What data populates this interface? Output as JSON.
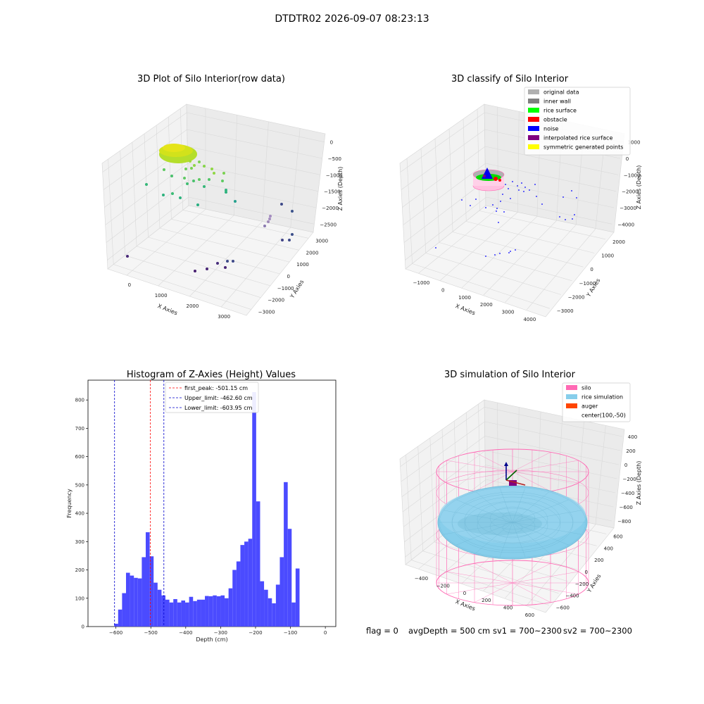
{
  "figure_title": "DTDTR02 2026-09-07 08:23:13",
  "status_line": {
    "flag": "flag = 0",
    "avg_depth": "avgDepth = 500 cm",
    "sv1": "sv1 = 700~2300",
    "sv2": "sv2 = 700~2300"
  },
  "colors": {
    "hist_bar": "#4b4bff",
    "first_peak": "#ff0000",
    "limits": "#0000cc",
    "silo": "#ff69b4",
    "rice": "#87ceeb",
    "auger": "#ff4500"
  },
  "chart_data": [
    {
      "type": "scatter",
      "title": "3D Plot of Silo Interior(row data)",
      "projection": "3d",
      "xlabel": "X Axies",
      "ylabel": "Y Axies",
      "zlabel": "Z Axies (Depth)",
      "x_ticks": [
        "0",
        "1000",
        "2000",
        "3000"
      ],
      "y_ticks": [
        "3000",
        "2000",
        "1000",
        "0",
        "−1000",
        "−2000",
        "−3000"
      ],
      "z_ticks": [
        "0",
        "−500",
        "−1000",
        "−1500",
        "−2000",
        "−2500"
      ],
      "colormap": "viridis (by depth)"
    },
    {
      "type": "scatter",
      "title": "3D classify of Silo Interior",
      "projection": "3d",
      "xlabel": "X Axies",
      "ylabel": "Y Axies",
      "zlabel": "Z Axies (Depth)",
      "x_ticks": [
        "−1000",
        "0",
        "1000",
        "2000",
        "3000",
        "4000"
      ],
      "y_ticks": [
        "2000",
        "1000",
        "0",
        "−1000",
        "−2000",
        "−3000"
      ],
      "z_ticks": [
        "1000",
        "0",
        "−1000",
        "−2000",
        "−3000",
        "−4000"
      ],
      "legend": [
        {
          "label": "original data",
          "color": "#b0b0b0"
        },
        {
          "label": "inner wall",
          "color": "#808080"
        },
        {
          "label": "rice surface",
          "color": "#00ff00"
        },
        {
          "label": "obstacle",
          "color": "#ff0000"
        },
        {
          "label": "noise",
          "color": "#0000ff"
        },
        {
          "label": "interpolated rice surface",
          "color": "#800080"
        },
        {
          "label": "symmetric generated points",
          "color": "#ffff00"
        }
      ],
      "legend_position": "top-right"
    },
    {
      "type": "bar",
      "title": "Histogram of Z-Axies (Height) Values",
      "xlabel": "Depth (cm)",
      "ylabel": "Frequency",
      "xlim": [
        -680,
        30
      ],
      "ylim": [
        0,
        870
      ],
      "x_ticks": [
        -600,
        -500,
        -400,
        -300,
        -200,
        -100,
        0
      ],
      "y_ticks": [
        0,
        100,
        200,
        300,
        400,
        500,
        600,
        700,
        800
      ],
      "bin_start": -605,
      "bin_width": 11.3,
      "values": [
        10,
        60,
        118,
        190,
        180,
        172,
        170,
        245,
        333,
        248,
        155,
        130,
        110,
        95,
        85,
        97,
        85,
        92,
        85,
        105,
        90,
        95,
        95,
        108,
        107,
        110,
        107,
        110,
        100,
        135,
        200,
        230,
        288,
        300,
        310,
        828,
        442,
        160,
        130,
        100,
        82,
        148,
        245,
        510,
        345,
        85,
        205
      ],
      "vlines": [
        {
          "name": "first_peak: -501.15 cm",
          "x": -501.15,
          "color": "#ff0000"
        },
        {
          "name": "Upper_limit: -462.60 cm",
          "x": -462.6,
          "color": "#0000cc"
        },
        {
          "name": "Lower_limit: -603.95 cm",
          "x": -603.95,
          "color": "#0000cc"
        }
      ],
      "legend_position": "top-center"
    },
    {
      "type": "surface",
      "title": "3D simulation of Silo Interior",
      "projection": "3d",
      "xlabel": "X Axies",
      "ylabel": "Y Axies",
      "zlabel": "Z Axies (Depth)",
      "x_ticks": [
        "−400",
        "−200",
        "0",
        "200",
        "400",
        "600"
      ],
      "y_ticks": [
        "600",
        "400",
        "200",
        "0",
        "−200",
        "−400",
        "−600"
      ],
      "z_ticks": [
        "400",
        "200",
        "0",
        "−200",
        "−400",
        "−600",
        "−800"
      ],
      "legend": [
        {
          "label": "silo",
          "color": "#ff69b4"
        },
        {
          "label": "rice simulation",
          "color": "#87ceeb"
        },
        {
          "label": "auger",
          "color": "#ff4500"
        },
        {
          "label": "center(100,-50)",
          "color": ""
        }
      ],
      "legend_position": "top-right"
    }
  ]
}
